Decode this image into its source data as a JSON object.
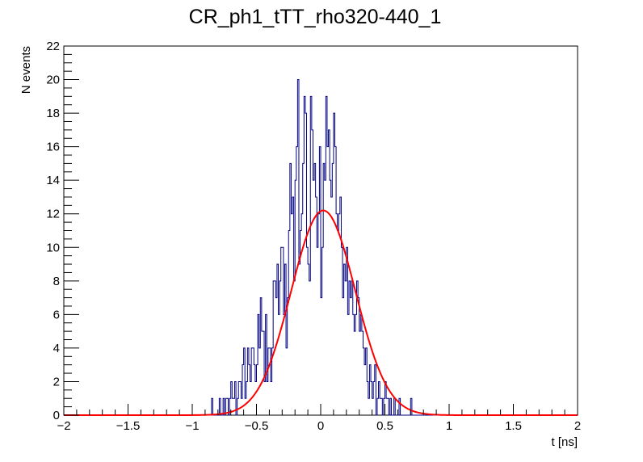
{
  "chart_data": {
    "type": "histogram",
    "title": "CR_ph1_tTT_rho320-440_1",
    "xlabel": "t [ns]",
    "ylabel": "N events",
    "xlim": [
      -2,
      2
    ],
    "ylim": [
      0,
      22
    ],
    "x_ticks": [
      -2,
      -1.5,
      -1,
      -0.5,
      0,
      0.5,
      1,
      1.5,
      2
    ],
    "x_tick_labels": [
      "−2",
      "−1.5",
      "−1",
      "−0.5",
      "0",
      "0.5",
      "1",
      "1.5",
      "2"
    ],
    "y_ticks": [
      0,
      2,
      4,
      6,
      8,
      10,
      12,
      14,
      16,
      18,
      20,
      22
    ],
    "y_tick_labels": [
      "0",
      "2",
      "4",
      "6",
      "8",
      "10",
      "12",
      "14",
      "16",
      "18",
      "20",
      "22"
    ],
    "grid": false,
    "legend": "none",
    "histogram": {
      "bin_range": [
        -0.85,
        0.9
      ],
      "bin_width": 0.01,
      "counts": [
        1,
        0,
        0,
        0,
        0,
        0,
        1,
        0,
        0,
        1,
        0,
        1,
        1,
        0,
        1,
        2,
        1,
        1,
        2,
        0,
        1,
        2,
        2,
        1,
        3,
        4,
        1,
        2,
        4,
        3,
        2,
        4,
        4,
        3,
        2,
        3,
        6,
        4,
        7,
        5,
        5,
        2,
        6,
        2,
        4,
        4,
        2,
        4,
        8,
        8,
        7,
        9,
        6,
        8,
        10,
        10,
        6,
        9,
        4,
        7,
        11,
        15,
        12,
        13,
        8,
        14,
        16,
        20,
        9,
        11,
        12,
        15,
        19,
        18,
        10,
        9,
        8,
        19,
        17,
        14,
        15,
        13,
        10,
        12,
        16,
        7,
        10,
        15,
        14,
        19,
        16,
        17,
        14,
        13,
        15,
        18,
        16,
        12,
        11,
        12,
        13,
        10,
        7,
        9,
        8,
        10,
        6,
        8,
        7,
        8,
        6,
        5,
        6,
        8,
        7,
        5,
        6,
        5,
        4,
        3,
        4,
        2,
        1,
        3,
        2,
        1,
        2,
        3,
        0,
        1,
        2,
        1,
        1,
        0,
        1,
        2,
        1,
        1,
        0,
        1,
        0,
        0,
        1,
        0,
        0,
        0,
        1,
        0,
        0,
        0,
        0,
        0,
        0,
        0,
        0,
        1,
        0,
        0,
        0,
        0,
        0,
        0,
        0,
        0,
        0,
        0,
        0,
        0,
        0,
        0,
        0,
        0,
        0,
        0,
        0,
        0
      ],
      "color": "#000080"
    },
    "series": [
      {
        "type": "gaussian-fit",
        "amplitude": 12.2,
        "mean": 0.02,
        "sigma": 0.25,
        "x_range": [
          -2,
          2
        ],
        "color": "#ff0000"
      }
    ]
  },
  "colors": {
    "histogram": "#000080",
    "fit": "#ff0000",
    "frame": "#000000",
    "background": "#ffffff"
  }
}
